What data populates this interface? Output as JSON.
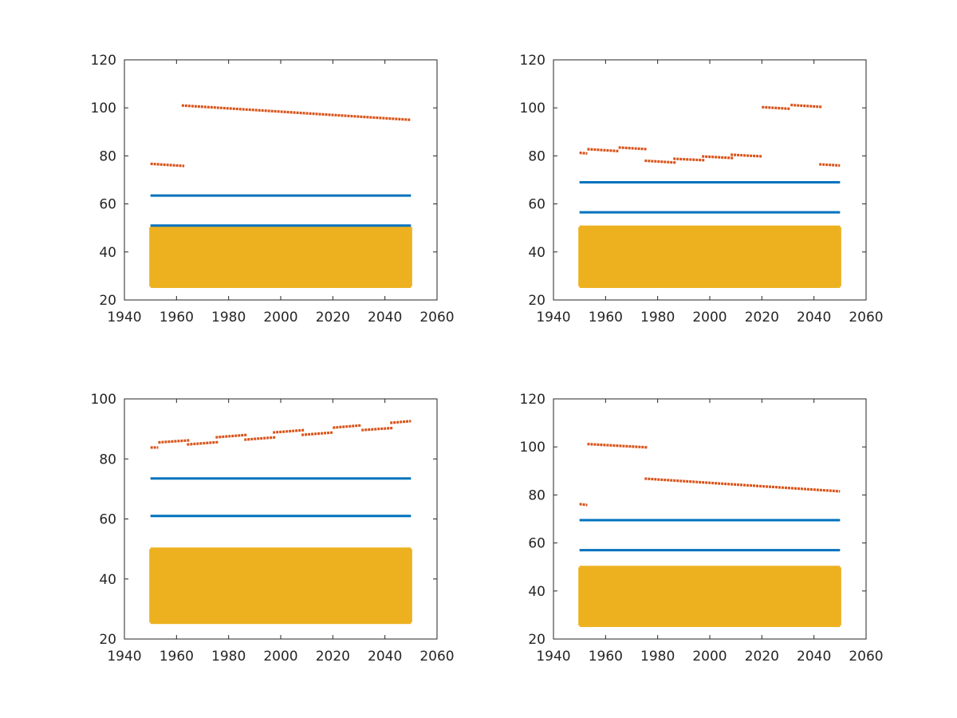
{
  "colors": {
    "blue": "#0072bd",
    "orange": "#d95319",
    "yellow": "#edb120",
    "axis": "#262626"
  },
  "chart_data": [
    {
      "type": "line",
      "title": "",
      "xlabel": "",
      "ylabel": "",
      "xlim": [
        1940,
        2060
      ],
      "ylim": [
        20,
        120
      ],
      "xticks": [
        1940,
        1960,
        1980,
        2000,
        2020,
        2040,
        2060
      ],
      "yticks": [
        20,
        40,
        60,
        80,
        100,
        120
      ],
      "grid": false,
      "series": [
        {
          "name": "band",
          "color_key": "yellow",
          "kind": "band",
          "x": [
            1950,
            2050
          ],
          "y_range": [
            25,
            51
          ]
        },
        {
          "name": "level-low",
          "color_key": "blue",
          "kind": "hline",
          "x": [
            1950,
            2050
          ],
          "y": 51
        },
        {
          "name": "level-high",
          "color_key": "blue",
          "kind": "hline",
          "x": [
            1950,
            2050
          ],
          "y": 63.5
        },
        {
          "name": "segments",
          "color_key": "orange",
          "kind": "segments",
          "segments": [
            {
              "x": [
                1950,
                1963
              ],
              "y": [
                76.7,
                75.8
              ]
            },
            {
              "x": [
                1962,
                2050
              ],
              "y": [
                101,
                95
              ]
            }
          ]
        }
      ]
    },
    {
      "type": "line",
      "title": "",
      "xlabel": "",
      "ylabel": "",
      "xlim": [
        1940,
        2060
      ],
      "ylim": [
        20,
        120
      ],
      "xticks": [
        1940,
        1960,
        1980,
        2000,
        2020,
        2040,
        2060
      ],
      "yticks": [
        20,
        40,
        60,
        80,
        100,
        120
      ],
      "grid": false,
      "series": [
        {
          "name": "band",
          "color_key": "yellow",
          "kind": "band",
          "x": [
            1950,
            2050
          ],
          "y_range": [
            25,
            51
          ]
        },
        {
          "name": "level-low",
          "color_key": "blue",
          "kind": "hline",
          "x": [
            1950,
            2050
          ],
          "y": 56.5
        },
        {
          "name": "level-high",
          "color_key": "blue",
          "kind": "hline",
          "x": [
            1950,
            2050
          ],
          "y": 69
        },
        {
          "name": "segments",
          "color_key": "orange",
          "kind": "segments",
          "segments": [
            {
              "x": [
                1950,
                1953
              ],
              "y": [
                81.3,
                81.0
              ]
            },
            {
              "x": [
                1953,
                1965
              ],
              "y": [
                82.8,
                82.0
              ]
            },
            {
              "x": [
                1965,
                1976
              ],
              "y": [
                83.5,
                82.8
              ]
            },
            {
              "x": [
                1975,
                1987
              ],
              "y": [
                78.0,
                77.2
              ]
            },
            {
              "x": [
                1986,
                1998
              ],
              "y": [
                78.8,
                78.2
              ]
            },
            {
              "x": [
                1997,
                2009
              ],
              "y": [
                79.8,
                79.1
              ]
            },
            {
              "x": [
                2008,
                2020
              ],
              "y": [
                80.5,
                79.8
              ]
            },
            {
              "x": [
                2020,
                2031
              ],
              "y": [
                100.3,
                99.6
              ]
            },
            {
              "x": [
                2031,
                2043
              ],
              "y": [
                101.2,
                100.4
              ]
            },
            {
              "x": [
                2042,
                2050
              ],
              "y": [
                76.5,
                76.0
              ]
            }
          ]
        }
      ]
    },
    {
      "type": "line",
      "title": "",
      "xlabel": "",
      "ylabel": "",
      "xlim": [
        1940,
        2060
      ],
      "ylim": [
        20,
        100
      ],
      "xticks": [
        1940,
        1960,
        1980,
        2000,
        2020,
        2040,
        2060
      ],
      "yticks": [
        20,
        40,
        60,
        80,
        100
      ],
      "grid": false,
      "series": [
        {
          "name": "band",
          "color_key": "yellow",
          "kind": "band",
          "x": [
            1950,
            2050
          ],
          "y_range": [
            25,
            50.5
          ]
        },
        {
          "name": "level-low",
          "color_key": "blue",
          "kind": "hline",
          "x": [
            1950,
            2050
          ],
          "y": 61
        },
        {
          "name": "level-high",
          "color_key": "blue",
          "kind": "hline",
          "x": [
            1950,
            2050
          ],
          "y": 73.5
        },
        {
          "name": "segments",
          "color_key": "orange",
          "kind": "segments",
          "segments": [
            {
              "x": [
                1950,
                1953
              ],
              "y": [
                83.8,
                83.8
              ]
            },
            {
              "x": [
                1953,
                1965
              ],
              "y": [
                85.5,
                86.2
              ]
            },
            {
              "x": [
                1964,
                1976
              ],
              "y": [
                84.8,
                85.6
              ]
            },
            {
              "x": [
                1975,
                1987
              ],
              "y": [
                87.2,
                88.0
              ]
            },
            {
              "x": [
                1986,
                1998
              ],
              "y": [
                86.4,
                87.2
              ]
            },
            {
              "x": [
                1997,
                2009
              ],
              "y": [
                88.8,
                89.6
              ]
            },
            {
              "x": [
                2008,
                2020
              ],
              "y": [
                88.0,
                88.8
              ]
            },
            {
              "x": [
                2020,
                2031
              ],
              "y": [
                90.4,
                91.2
              ]
            },
            {
              "x": [
                2031,
                2043
              ],
              "y": [
                89.6,
                90.3
              ]
            },
            {
              "x": [
                2042,
                2050
              ],
              "y": [
                92.0,
                92.6
              ]
            }
          ]
        }
      ]
    },
    {
      "type": "line",
      "title": "",
      "xlabel": "",
      "ylabel": "",
      "xlim": [
        1940,
        2060
      ],
      "ylim": [
        20,
        120
      ],
      "xticks": [
        1940,
        1960,
        1980,
        2000,
        2020,
        2040,
        2060
      ],
      "yticks": [
        20,
        40,
        60,
        80,
        100,
        120
      ],
      "grid": false,
      "series": [
        {
          "name": "band",
          "color_key": "yellow",
          "kind": "band",
          "x": [
            1950,
            2050
          ],
          "y_range": [
            25,
            50.5
          ]
        },
        {
          "name": "level-low",
          "color_key": "blue",
          "kind": "hline",
          "x": [
            1950,
            2050
          ],
          "y": 57
        },
        {
          "name": "level-high",
          "color_key": "blue",
          "kind": "hline",
          "x": [
            1950,
            2050
          ],
          "y": 69.5
        },
        {
          "name": "segments",
          "color_key": "orange",
          "kind": "segments",
          "segments": [
            {
              "x": [
                1950,
                1953
              ],
              "y": [
                76.2,
                75.8
              ]
            },
            {
              "x": [
                1953,
                1976
              ],
              "y": [
                101.2,
                99.8
              ]
            },
            {
              "x": [
                1975,
                2050
              ],
              "y": [
                86.8,
                81.5
              ]
            }
          ]
        }
      ]
    }
  ]
}
